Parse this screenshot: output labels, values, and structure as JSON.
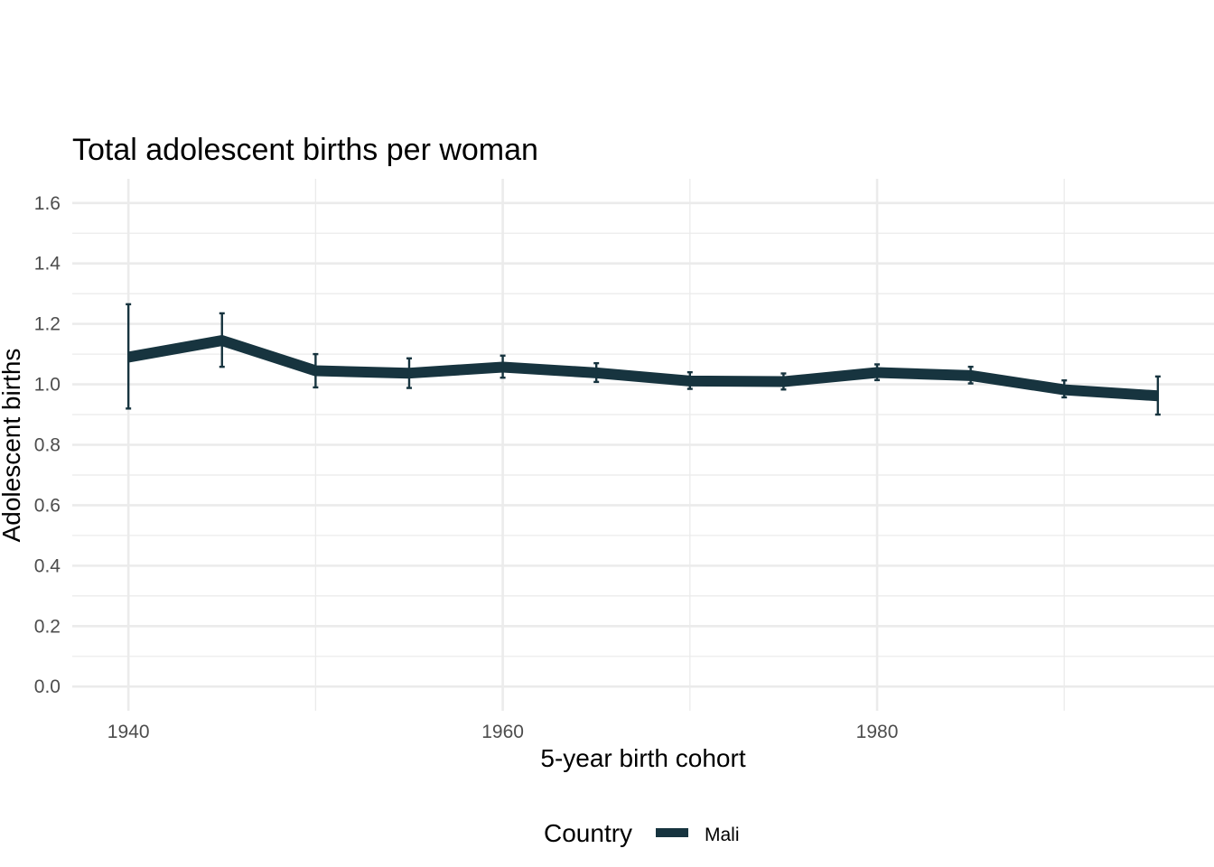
{
  "chart_data": {
    "type": "line",
    "title": "Total adolescent births per woman",
    "xlabel": "5-year birth cohort",
    "ylabel": "Adolescent births",
    "xlim": [
      1937,
      1998
    ],
    "ylim": [
      -0.08,
      1.68
    ],
    "x_ticks": [
      1940,
      1960,
      1980
    ],
    "x_tick_labels": [
      "1940",
      "1960",
      "1980"
    ],
    "x_minor_ticks": [
      1950,
      1970,
      1990
    ],
    "y_ticks": [
      0.0,
      0.2,
      0.4,
      0.6,
      0.8,
      1.0,
      1.2,
      1.4,
      1.6
    ],
    "y_tick_labels": [
      "0.0",
      "0.2",
      "0.4",
      "0.6",
      "0.8",
      "1.0",
      "1.2",
      "1.4",
      "1.6"
    ],
    "y_minor_ticks": [
      0.1,
      0.3,
      0.5,
      0.7,
      0.9,
      1.1,
      1.3,
      1.5
    ],
    "grid": true,
    "legend": {
      "title": "Country",
      "position": "bottom"
    },
    "series": [
      {
        "name": "Mali",
        "color": "#17343f",
        "x": [
          1940,
          1945,
          1950,
          1955,
          1960,
          1965,
          1970,
          1975,
          1980,
          1985,
          1990,
          1995
        ],
        "values": [
          1.09,
          1.145,
          1.045,
          1.037,
          1.057,
          1.038,
          1.011,
          1.009,
          1.039,
          1.029,
          0.982,
          0.962
        ],
        "lower": [
          0.92,
          1.058,
          0.99,
          0.988,
          1.022,
          1.008,
          0.985,
          0.983,
          1.014,
          1.003,
          0.957,
          0.9
        ],
        "upper": [
          1.265,
          1.235,
          1.1,
          1.086,
          1.095,
          1.07,
          1.04,
          1.036,
          1.066,
          1.058,
          1.013,
          1.026
        ]
      }
    ]
  }
}
